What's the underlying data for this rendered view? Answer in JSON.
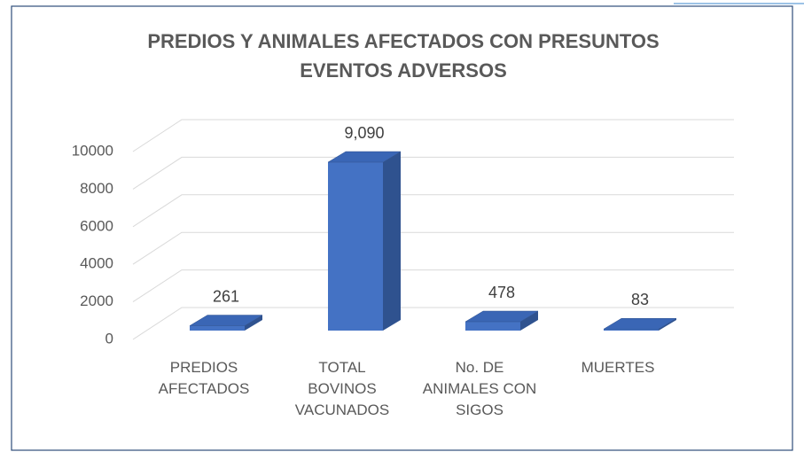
{
  "chart_data": {
    "type": "bar3d",
    "title": "PREDIOS Y ANIMALES AFECTADOS CON PRESUNTOS EVENTOS ADVERSOS",
    "categories": [
      "PREDIOS\nAFECTADOS",
      "TOTAL\nBOVINOS\nVACUNADOS",
      "No. DE\nANIMALES CON\nSIGOS",
      "MUERTES"
    ],
    "values": [
      261,
      9090,
      478,
      83
    ],
    "value_labels": [
      "261",
      "9,090",
      "478",
      "83"
    ],
    "color": "#4472c4",
    "ylim": [
      0,
      10000
    ],
    "yticks": [
      0,
      2000,
      4000,
      6000,
      8000,
      10000
    ],
    "grid": true
  }
}
